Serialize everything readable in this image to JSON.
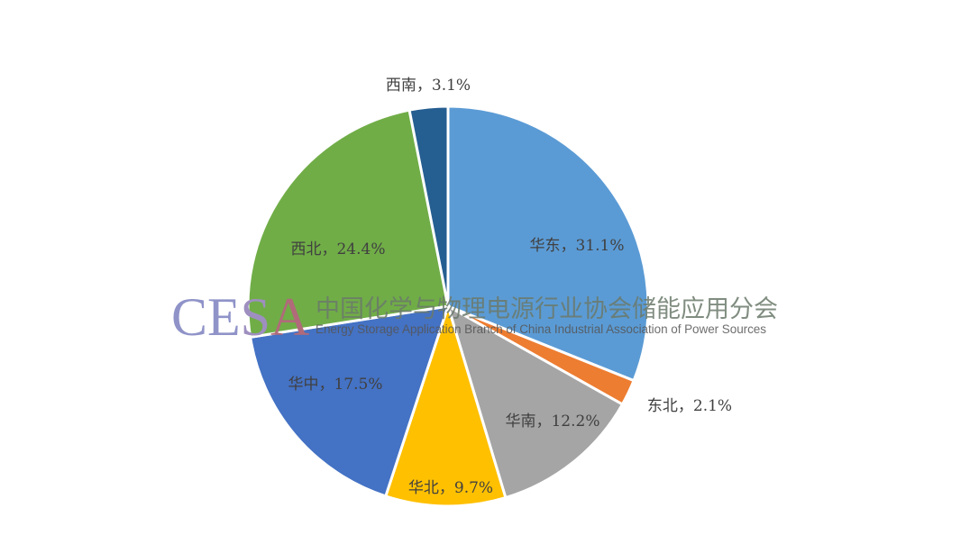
{
  "chart_data": {
    "type": "pie",
    "title": "",
    "start_angle": "top",
    "direction": "clockwise",
    "slices": [
      {
        "label": "华东",
        "value": 31.1,
        "text": "华东，31.1%",
        "color": "#5B9BD5"
      },
      {
        "label": "东北",
        "value": 2.1,
        "text": "东北，2.1%",
        "color": "#ED7D31"
      },
      {
        "label": "华南",
        "value": 12.2,
        "text": "华南，12.2%",
        "color": "#A5A5A5"
      },
      {
        "label": "华北",
        "value": 9.7,
        "text": "华北，9.7%",
        "color": "#FFC000"
      },
      {
        "label": "华中",
        "value": 17.5,
        "text": "华中，17.5%",
        "color": "#4472C4"
      },
      {
        "label": "西北",
        "value": 24.4,
        "text": "西北，24.4%",
        "color": "#70AD47"
      },
      {
        "label": "西南",
        "value": 3.1,
        "text": "西南，3.1%",
        "color": "#255E91"
      }
    ]
  },
  "watermark": {
    "logo": "CESA",
    "cn": "中国化学与物理电源行业协会储能应用分会",
    "en": "Energy Storage Application Branch of China Industrial Association of Power Sources"
  }
}
